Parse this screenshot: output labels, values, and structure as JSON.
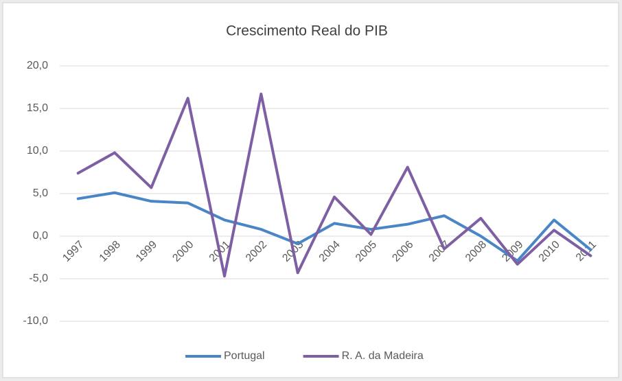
{
  "chart_data": {
    "type": "line",
    "title": "Crescimento Real do PIB",
    "categories": [
      "1997",
      "1998",
      "1999",
      "2000",
      "2001",
      "2002",
      "2003",
      "2004",
      "2005",
      "2006",
      "2007",
      "2008",
      "2009",
      "2010",
      "2011"
    ],
    "series": [
      {
        "name": "Portugal",
        "color": "#4a86c5",
        "values": [
          4.4,
          5.1,
          4.1,
          3.9,
          1.9,
          0.8,
          -0.9,
          1.5,
          0.8,
          1.4,
          2.4,
          0.0,
          -2.9,
          1.9,
          -1.6
        ]
      },
      {
        "name": "R. A. da Madeira",
        "color": "#7f5fa3",
        "values": [
          7.4,
          9.8,
          5.7,
          16.2,
          -4.7,
          16.7,
          -4.3,
          4.6,
          0.2,
          8.1,
          -1.5,
          2.1,
          -3.3,
          0.7,
          -2.3
        ]
      }
    ],
    "ylim": [
      -10,
      20
    ],
    "yticks": [
      {
        "value": -10,
        "label": "-10,0"
      },
      {
        "value": -5,
        "label": "-5,0"
      },
      {
        "value": 0,
        "label": "0,0"
      },
      {
        "value": 5,
        "label": "5,0"
      },
      {
        "value": 10,
        "label": "10,0"
      },
      {
        "value": 15,
        "label": "15,0"
      },
      {
        "value": 20,
        "label": "20,0"
      }
    ],
    "grid": true,
    "legend": "bottom"
  }
}
